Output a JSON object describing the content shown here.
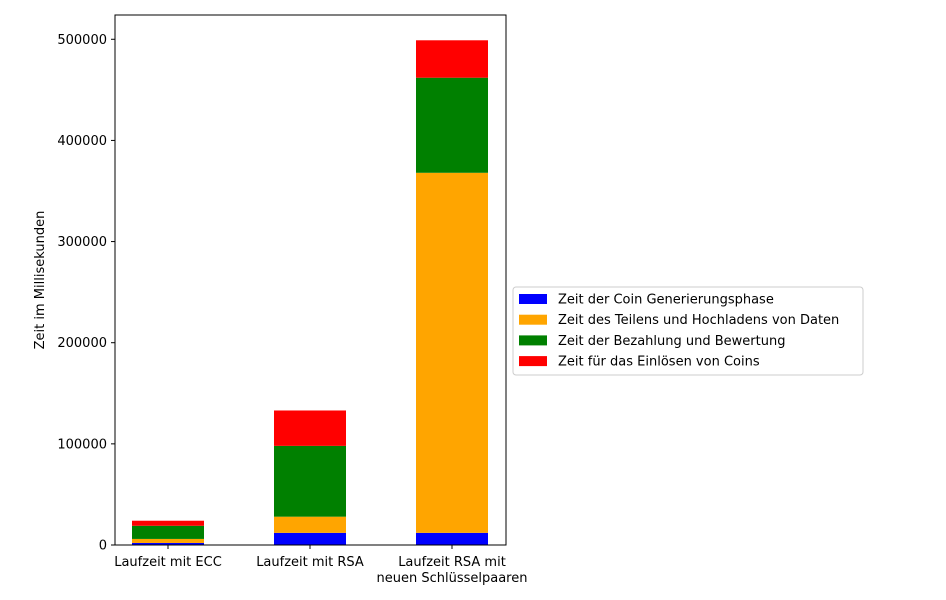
{
  "chart_data": {
    "type": "bar",
    "stacked": true,
    "title": "",
    "xlabel": "",
    "ylabel": "Zeit im Millisekunden",
    "categories": [
      [
        "Laufzeit mit ECC"
      ],
      [
        "Laufzeit mit RSA"
      ],
      [
        "Laufzeit RSA mit",
        "neuen Schlüsselpaaren"
      ]
    ],
    "ylim": [
      0,
      524000
    ],
    "yticks": [
      0,
      100000,
      200000,
      300000,
      400000,
      500000
    ],
    "ytick_labels": [
      "0",
      "100000",
      "200000",
      "300000",
      "400000",
      "500000"
    ],
    "grid": false,
    "legend_position": "right",
    "series": [
      {
        "name": "Zeit der Coin Generierungsphase",
        "color": "#0000ff",
        "values": [
          2000,
          12000,
          12000
        ]
      },
      {
        "name": "Zeit des Teilens und Hochladens von Daten",
        "color": "#ffa500",
        "values": [
          4000,
          16000,
          356000
        ]
      },
      {
        "name": "Zeit der Bezahlung und Bewertung",
        "color": "#008000",
        "values": [
          13000,
          70000,
          94000
        ]
      },
      {
        "name": "Zeit für das Einlösen von Coins",
        "color": "#ff0000",
        "values": [
          5000,
          35000,
          37000
        ]
      }
    ]
  }
}
